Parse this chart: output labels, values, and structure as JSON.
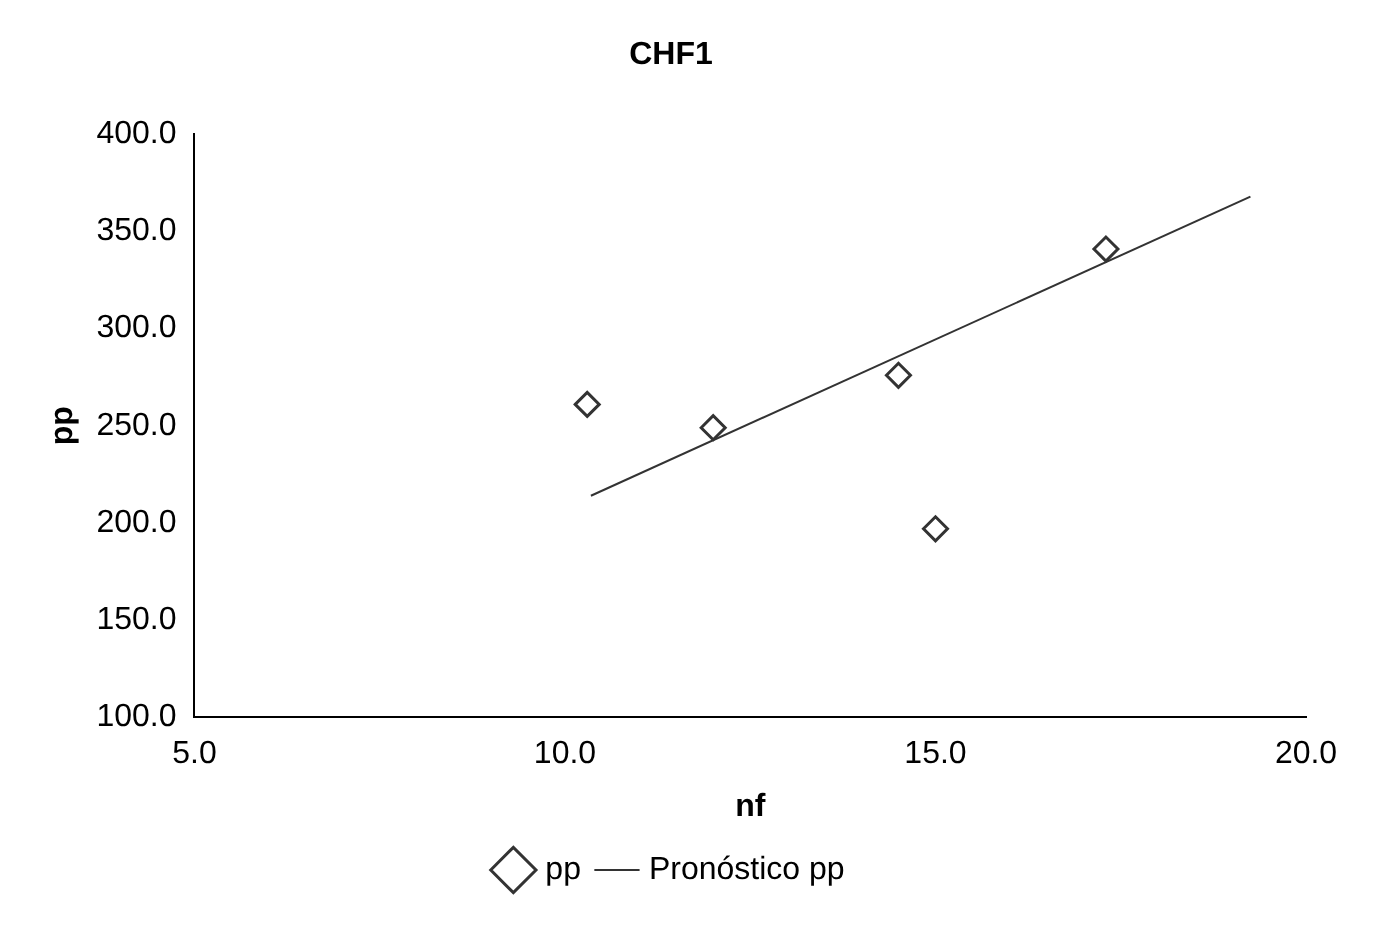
{
  "chart_data": {
    "type": "scatter",
    "title": "CHF1",
    "xlabel": "nf",
    "ylabel": "pp",
    "xlim": [
      5,
      20
    ],
    "xticks": [
      {
        "value": 5,
        "label": "5.0"
      },
      {
        "value": 10,
        "label": "10.0"
      },
      {
        "value": 15,
        "label": "15.0"
      },
      {
        "value": 20,
        "label": "20.0"
      }
    ],
    "ylim": [
      100,
      400
    ],
    "yticks": [
      {
        "value": 100,
        "label": "100.0"
      },
      {
        "value": 150,
        "label": "150.0"
      },
      {
        "value": 200,
        "label": "200.0"
      },
      {
        "value": 250,
        "label": "250.0"
      },
      {
        "value": 300,
        "label": "300.0"
      },
      {
        "value": 350,
        "label": "350.0"
      },
      {
        "value": 400,
        "label": "400.0"
      }
    ],
    "grid": false,
    "legend": "bottom",
    "marker": "diamond",
    "series": [
      {
        "name": "pp",
        "color": "#333333",
        "x": [
          10.3,
          12.0,
          14.5,
          15.0,
          17.3
        ],
        "values": [
          261,
          249,
          276,
          197,
          341
        ]
      },
      {
        "name": "Pronóstico pp",
        "type": "line",
        "color": "#333333",
        "marker": "none",
        "line_style": "solid",
        "x": [
          10.35,
          19.25
        ],
        "values": [
          214,
          368
        ]
      }
    ]
  }
}
